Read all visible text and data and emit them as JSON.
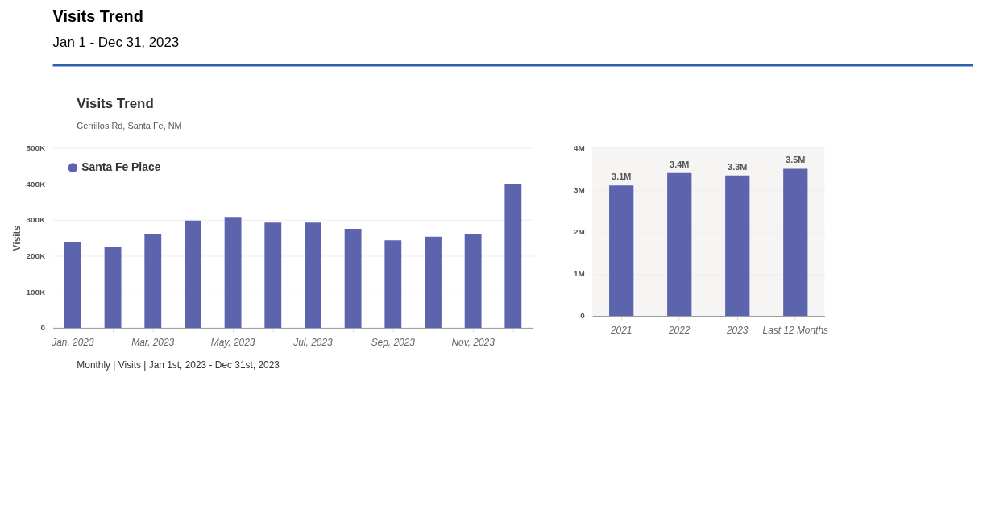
{
  "chart_data": [
    {
      "type": "bar",
      "title": "Visits Trend",
      "subtitle": "Jan 1 - Dec 31, 2023",
      "ylabel": "Visits",
      "annotations": [
        "Visits Trend",
        "Cerrillos Rd, Santa Fe, NM",
        "Monthly | Visits | Jan 1st, 2023 - Dec 31st, 2023"
      ],
      "categories": [
        "Jan, 2023",
        null,
        "Mar, 2023",
        null,
        "May, 2023",
        null,
        "Jul, 2023",
        null,
        "Sep, 2023",
        null,
        "Nov, 2023",
        null
      ],
      "series": [
        {
          "name": "Santa Fe Place",
          "color": "#5c64ae",
          "values": [
            239000,
            224000,
            259000,
            298000,
            308000,
            292000,
            292000,
            275000,
            243000,
            253000,
            259000,
            399000
          ]
        }
      ],
      "ylim": [
        0,
        500000
      ],
      "yticks": [
        0,
        {
          "value": 100000,
          "label": "100K"
        },
        {
          "value": 200000,
          "label": "200K"
        },
        {
          "value": 300000,
          "label": "300K"
        },
        {
          "value": 400000,
          "label": "400K"
        },
        {
          "value": 500000,
          "label": "500K"
        }
      ],
      "grid": "y",
      "legend": "top left"
    },
    {
      "type": "bar",
      "categories": [
        "2021",
        "2022",
        "2023",
        "Last 12 Months"
      ],
      "values": [
        3100000,
        3400000,
        3340000,
        3500000
      ],
      "color": "#5c64ae",
      "value_labels": [
        "3.1M",
        "3.4M",
        "3.3M",
        "3.5M"
      ],
      "ylim": [
        0,
        4000000
      ],
      "yticks": [
        0,
        {
          "value": 1000000,
          "label": "1M"
        },
        {
          "value": 2000000,
          "label": "2M"
        },
        {
          "value": 3000000,
          "label": "3M"
        },
        {
          "value": 4000000,
          "label": "4M"
        }
      ],
      "grid": "y"
    }
  ]
}
